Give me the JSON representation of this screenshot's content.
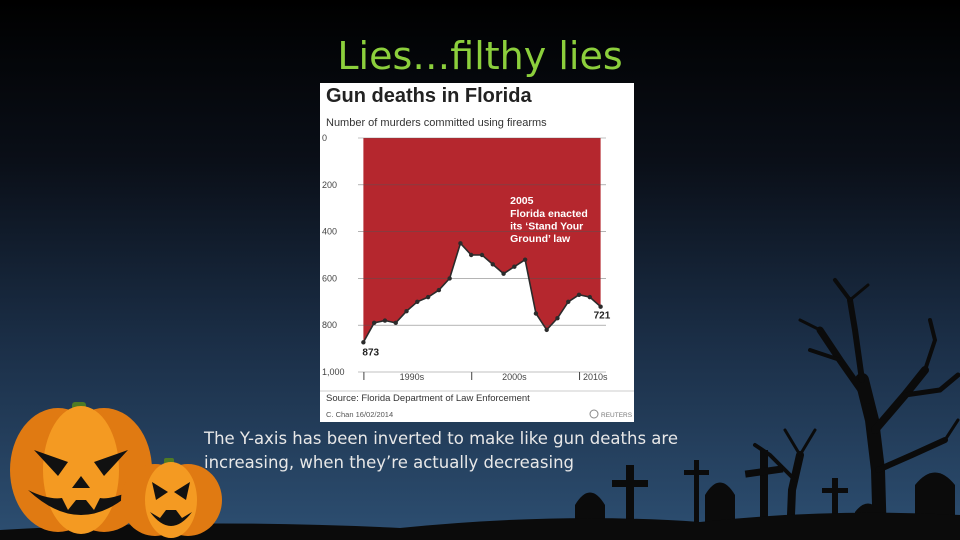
{
  "slide": {
    "title": "Lies…filthy lies",
    "caption": "The Y-axis has been inverted to make like gun deaths are increasing, when they’re actually decreasing"
  },
  "colors": {
    "title": "#8ccf3c",
    "fill": "#b5272e",
    "line": "#2b2b2b",
    "pumpkin": "#f08c1a"
  },
  "chart_data": {
    "type": "area",
    "title": "Gun deaths in Florida",
    "subtitle": "Number of murders committed using firearms",
    "y_inverted": true,
    "ylim": [
      0,
      1000
    ],
    "xlim": [
      1989.5,
      2012.5
    ],
    "y_ticks": [
      0,
      200,
      400,
      600,
      800,
      1000
    ],
    "y_tick_labels": [
      "0",
      "200",
      "400",
      "600",
      "800",
      "1,000"
    ],
    "x_tick_labels": [
      {
        "label": "1990s",
        "x": 1994.5
      },
      {
        "label": "2000s",
        "x": 2004
      },
      {
        "label": "2010s",
        "x": 2011.5
      }
    ],
    "x_dividers": [
      1990,
      2000,
      2010
    ],
    "x": [
      1990,
      1991,
      1992,
      1993,
      1994,
      1995,
      1996,
      1997,
      1998,
      1999,
      2000,
      2001,
      2002,
      2003,
      2004,
      2005,
      2006,
      2007,
      2008,
      2009,
      2010,
      2011,
      2012
    ],
    "y": [
      873,
      790,
      780,
      790,
      740,
      700,
      680,
      650,
      600,
      450,
      500,
      500,
      540,
      580,
      550,
      520,
      750,
      820,
      770,
      700,
      670,
      680,
      721
    ],
    "data_labels": [
      {
        "x": 1990,
        "text": "873"
      },
      {
        "x": 2012,
        "text": "721"
      }
    ],
    "annotation": {
      "year": "2005",
      "lines": [
        "Florida enacted",
        "its ‘Stand Your",
        "Ground’ law"
      ]
    },
    "source": "Source: Florida Department of Law Enforcement",
    "credit": "C. Chan  16/02/2014",
    "logo": "REUTERS"
  }
}
